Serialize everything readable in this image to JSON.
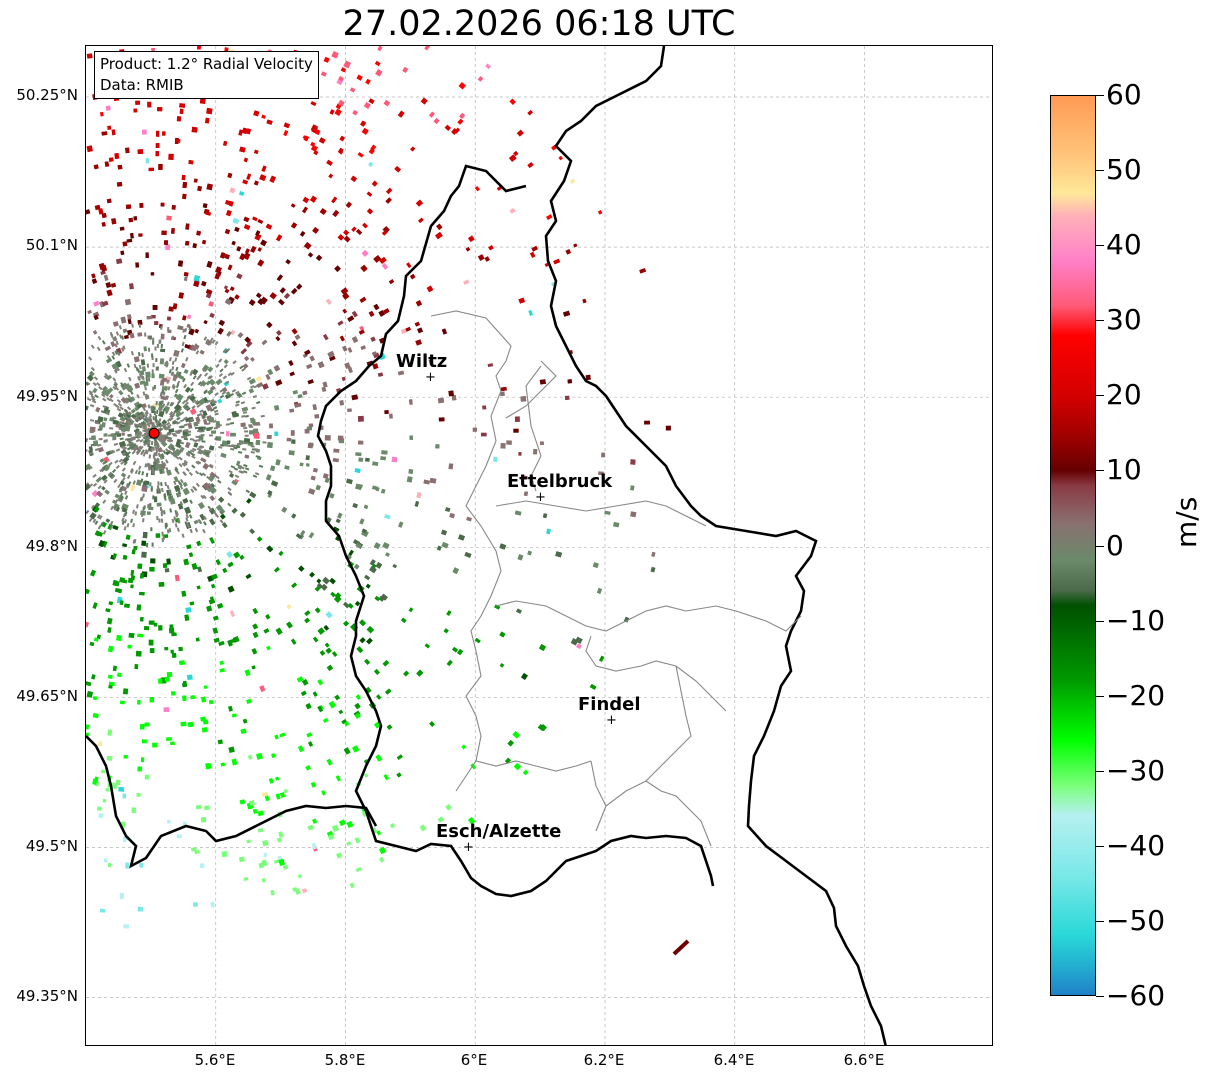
{
  "title": "27.02.2026 06:18 UTC",
  "info": {
    "product": "Product: 1.2° Radial Velocity",
    "source": "Data: RMIB"
  },
  "map": {
    "lon_range": [
      5.4,
      6.8
    ],
    "lat_range": [
      49.3,
      50.3
    ],
    "lat_ticks": [
      "50.25°N",
      "50.1°N",
      "49.95°N",
      "49.8°N",
      "49.65°N",
      "49.5°N",
      "49.35°N"
    ],
    "lon_ticks": [
      "5.6°E",
      "5.8°E",
      "6°E",
      "6.2°E",
      "6.4°E",
      "6.6°E"
    ],
    "radar_site": {
      "lon": 5.505,
      "lat": 49.914
    },
    "cities": [
      {
        "name": "Wiltz",
        "lon": 5.935,
        "lat": 49.966
      },
      {
        "name": "Ettelbruck",
        "lon": 6.104,
        "lat": 49.846
      },
      {
        "name": "Findel",
        "lon": 6.21,
        "lat": 49.626
      },
      {
        "name": "Esch/Alzette",
        "lon": 5.98,
        "lat": 49.5
      }
    ],
    "colors": {
      "border_national": "#000000",
      "border_canton": "#888888",
      "radar_marker": "#ff0000"
    }
  },
  "colorbar": {
    "unit": "m/s",
    "min": -60,
    "max": 60,
    "labels": [
      "60",
      "50",
      "40",
      "30",
      "20",
      "10",
      "0",
      "−10",
      "−20",
      "−30",
      "−40",
      "−50",
      "−60"
    ],
    "stops": [
      {
        "v": 60,
        "color": "#ff9a55"
      },
      {
        "v": 52,
        "color": "#ffc57a"
      },
      {
        "v": 47,
        "color": "#ffe89a"
      },
      {
        "v": 44,
        "color": "#ffb0b8"
      },
      {
        "v": 38,
        "color": "#ff80c8"
      },
      {
        "v": 32,
        "color": "#ff5a78"
      },
      {
        "v": 28,
        "color": "#ff0000"
      },
      {
        "v": 20,
        "color": "#d40000"
      },
      {
        "v": 14,
        "color": "#9a0000"
      },
      {
        "v": 10,
        "color": "#650000"
      },
      {
        "v": 8,
        "color": "#8a3a44"
      },
      {
        "v": 3,
        "color": "#8a7070"
      },
      {
        "v": -2,
        "color": "#6a8a6a"
      },
      {
        "v": -6,
        "color": "#4a6a4a"
      },
      {
        "v": -8,
        "color": "#005000"
      },
      {
        "v": -18,
        "color": "#009a00"
      },
      {
        "v": -26,
        "color": "#00ff00"
      },
      {
        "v": -32,
        "color": "#7aff7a"
      },
      {
        "v": -36,
        "color": "#b6f0f0"
      },
      {
        "v": -44,
        "color": "#7ae8e8"
      },
      {
        "v": -52,
        "color": "#2ad8d8"
      },
      {
        "v": -56,
        "color": "#22b0d0"
      },
      {
        "v": -60,
        "color": "#2080c8"
      }
    ]
  }
}
